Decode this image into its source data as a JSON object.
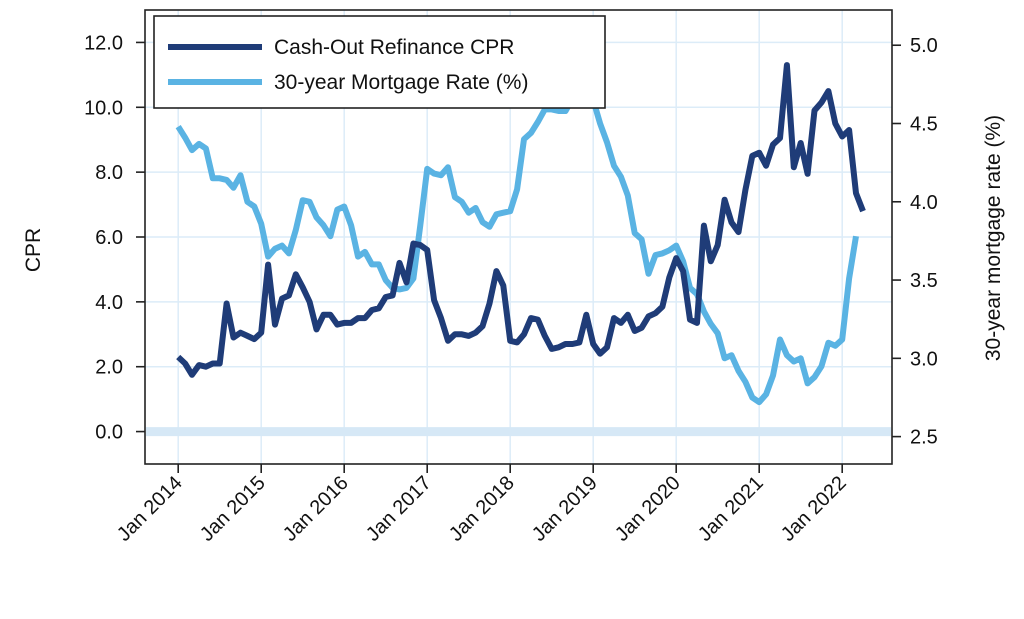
{
  "chart_data": {
    "type": "line",
    "title": "",
    "xlabel": "",
    "ylabel": "CPR",
    "y2label": "30-year mortgage rate (%)",
    "ylim": [
      -1.0,
      13.0
    ],
    "y2lim": [
      2.325,
      5.225
    ],
    "xlim": [
      2013.6,
      2022.6
    ],
    "y_ticks": [
      0,
      2,
      4,
      6,
      8,
      10,
      12
    ],
    "y_tick_labels": [
      "0.0",
      "2.0",
      "4.0",
      "6.0",
      "8.0",
      "10.0",
      "12.0"
    ],
    "y2_ticks": [
      2.5,
      3.0,
      3.5,
      4.0,
      4.5,
      5.0
    ],
    "y2_tick_labels": [
      "2.5",
      "3.0",
      "3.5",
      "4.0",
      "4.5",
      "5.0"
    ],
    "x_ticks": [
      2014,
      2015,
      2016,
      2017,
      2018,
      2019,
      2020,
      2021,
      2022
    ],
    "x_tick_labels": [
      "Jan 2014",
      "Jan 2015",
      "Jan 2016",
      "Jan 2017",
      "Jan 2018",
      "Jan 2019",
      "Jan 2020",
      "Jan 2021",
      "Jan 2022"
    ],
    "grid": true,
    "legend_position": "top-left",
    "x_start": 2014.0,
    "x_step_months": 1,
    "series": [
      {
        "name": "Cash-Out Refinance CPR",
        "axis": "left",
        "color": "#1f3c78",
        "values": [
          2.3,
          2.1,
          1.75,
          2.05,
          2.0,
          2.1,
          2.1,
          3.95,
          2.9,
          3.05,
          2.95,
          2.85,
          3.05,
          5.15,
          3.3,
          4.1,
          4.2,
          4.85,
          4.45,
          4.0,
          3.15,
          3.6,
          3.6,
          3.3,
          3.35,
          3.35,
          3.5,
          3.5,
          3.75,
          3.8,
          4.15,
          4.2,
          5.2,
          4.6,
          5.8,
          5.75,
          5.6,
          4.05,
          3.5,
          2.8,
          3.0,
          3.0,
          2.95,
          3.05,
          3.25,
          3.95,
          4.95,
          4.5,
          2.8,
          2.75,
          3.0,
          3.5,
          3.45,
          2.95,
          2.55,
          2.6,
          2.7,
          2.7,
          2.75,
          3.6,
          2.7,
          2.4,
          2.6,
          3.5,
          3.35,
          3.6,
          3.1,
          3.2,
          3.55,
          3.65,
          3.85,
          4.75,
          5.35,
          4.95,
          3.45,
          3.35,
          6.35,
          5.25,
          5.75,
          7.15,
          6.45,
          6.15,
          7.45,
          8.5,
          8.6,
          8.2,
          8.85,
          9.05,
          11.3,
          8.15,
          8.9,
          7.95,
          9.9,
          10.15,
          10.5,
          9.5,
          9.1,
          9.3,
          7.35,
          6.8
        ]
      },
      {
        "name": "30-year Mortgage Rate (%)",
        "axis": "right",
        "color": "#5ab3e3",
        "values": [
          4.48,
          4.41,
          4.33,
          4.37,
          4.34,
          4.15,
          4.15,
          4.14,
          4.09,
          4.17,
          4.0,
          3.97,
          3.86,
          3.65,
          3.7,
          3.72,
          3.67,
          3.82,
          4.01,
          4.0,
          3.9,
          3.85,
          3.78,
          3.95,
          3.97,
          3.85,
          3.65,
          3.68,
          3.6,
          3.6,
          3.5,
          3.45,
          3.44,
          3.45,
          3.51,
          3.85,
          4.21,
          4.18,
          4.17,
          4.22,
          4.03,
          4.0,
          3.93,
          3.96,
          3.87,
          3.84,
          3.92,
          3.93,
          3.94,
          4.08,
          4.4,
          4.44,
          4.51,
          4.59,
          4.59,
          4.58,
          4.58,
          4.66,
          4.66,
          4.68,
          4.65,
          4.5,
          4.38,
          4.23,
          4.16,
          4.04,
          3.8,
          3.76,
          3.54,
          3.66,
          3.67,
          3.69,
          3.72,
          3.62,
          3.45,
          3.41,
          3.3,
          3.22,
          3.16,
          3.0,
          3.02,
          2.92,
          2.85,
          2.75,
          2.72,
          2.77,
          2.89,
          3.12,
          3.02,
          2.98,
          3.0,
          2.84,
          2.88,
          2.95,
          3.1,
          3.08,
          3.12,
          3.51,
          3.78
        ]
      }
    ]
  }
}
